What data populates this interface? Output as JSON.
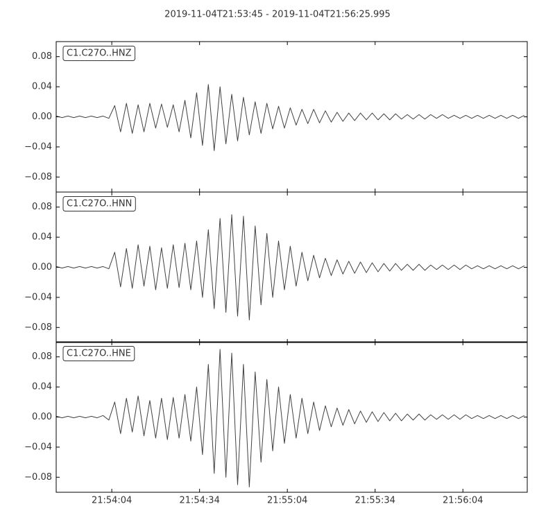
{
  "title": "2019-11-04T21:53:45  -  2019-11-04T21:56:25.995",
  "chart_data": [
    {
      "type": "line",
      "xlim": [
        0,
        160.995
      ],
      "ylim": [
        -0.1,
        0.1
      ],
      "xticks": [
        19,
        49,
        79,
        109,
        139
      ],
      "yticks": [
        0.08,
        0.04,
        {
          "value": 0,
          "label": "0.00"
        },
        {
          "value": -0.04,
          "label": "−0.04"
        },
        {
          "value": -0.08,
          "label": "−0.08"
        }
      ],
      "x": [
        0,
        2,
        4,
        6,
        8,
        10,
        12,
        14,
        16,
        18,
        20,
        22,
        24,
        26,
        28,
        30,
        32,
        34,
        36,
        38,
        40,
        42,
        44,
        46,
        48,
        50,
        52,
        54,
        56,
        58,
        60,
        62,
        64,
        66,
        68,
        70,
        72,
        74,
        76,
        78,
        80,
        82,
        84,
        86,
        88,
        90,
        92,
        94,
        96,
        98,
        100,
        102,
        104,
        106,
        108,
        110,
        112,
        114,
        116,
        118,
        120,
        122,
        124,
        126,
        128,
        130,
        132,
        134,
        136,
        138,
        140,
        142,
        144,
        146,
        148,
        150,
        152,
        154,
        156,
        158,
        160
      ],
      "series": [
        {
          "name": "C1.C27O..HNZ",
          "color": "#404040",
          "values": [
            0.001,
            -0.001,
            0.001,
            -0.001,
            0.001,
            -0.001,
            0.001,
            -0.001,
            0.001,
            -0.002,
            0.015,
            -0.02,
            0.018,
            -0.022,
            0.016,
            -0.02,
            0.018,
            -0.015,
            0.017,
            -0.014,
            0.016,
            -0.02,
            0.022,
            -0.028,
            0.032,
            -0.038,
            0.043,
            -0.045,
            0.04,
            -0.036,
            0.03,
            -0.032,
            0.026,
            -0.024,
            0.02,
            -0.022,
            0.018,
            -0.016,
            0.014,
            -0.015,
            0.012,
            -0.011,
            0.01,
            -0.009,
            0.01,
            -0.008,
            0.008,
            -0.007,
            0.006,
            -0.006,
            0.005,
            -0.005,
            0.005,
            -0.004,
            0.005,
            -0.004,
            0.004,
            -0.004,
            0.004,
            -0.003,
            0.003,
            -0.003,
            0.003,
            -0.003,
            0.003,
            -0.002,
            0.003,
            -0.002,
            0.002,
            -0.002,
            0.002,
            -0.002,
            0.002,
            -0.002,
            0.002,
            -0.002,
            0.002,
            -0.002,
            0.002,
            -0.002,
            0.002
          ]
        }
      ]
    },
    {
      "type": "line",
      "xlim": [
        0,
        160.995
      ],
      "ylim": [
        -0.1,
        0.1
      ],
      "xticks": [
        19,
        49,
        79,
        109,
        139
      ],
      "yticks": [
        0.08,
        0.04,
        {
          "value": 0,
          "label": "0.00"
        },
        {
          "value": -0.04,
          "label": "−0.04"
        },
        {
          "value": -0.08,
          "label": "−0.08"
        }
      ],
      "x": [
        0,
        2,
        4,
        6,
        8,
        10,
        12,
        14,
        16,
        18,
        20,
        22,
        24,
        26,
        28,
        30,
        32,
        34,
        36,
        38,
        40,
        42,
        44,
        46,
        48,
        50,
        52,
        54,
        56,
        58,
        60,
        62,
        64,
        66,
        68,
        70,
        72,
        74,
        76,
        78,
        80,
        82,
        84,
        86,
        88,
        90,
        92,
        94,
        96,
        98,
        100,
        102,
        104,
        106,
        108,
        110,
        112,
        114,
        116,
        118,
        120,
        122,
        124,
        126,
        128,
        130,
        132,
        134,
        136,
        138,
        140,
        142,
        144,
        146,
        148,
        150,
        152,
        154,
        156,
        158,
        160
      ],
      "series": [
        {
          "name": "C1.C27O..HNN",
          "color": "#404040",
          "values": [
            0.001,
            -0.001,
            0.001,
            -0.001,
            0.001,
            -0.001,
            0.001,
            -0.001,
            0.001,
            -0.002,
            0.02,
            -0.026,
            0.025,
            -0.028,
            0.03,
            -0.025,
            0.028,
            -0.03,
            0.026,
            -0.028,
            0.03,
            -0.027,
            0.032,
            -0.03,
            0.035,
            -0.04,
            0.05,
            -0.055,
            0.065,
            -0.06,
            0.07,
            -0.065,
            0.068,
            -0.07,
            0.055,
            -0.05,
            0.045,
            -0.04,
            0.035,
            -0.03,
            0.028,
            -0.025,
            0.02,
            -0.018,
            0.016,
            -0.014,
            0.012,
            -0.011,
            0.01,
            -0.009,
            0.008,
            -0.008,
            0.007,
            -0.007,
            0.006,
            -0.006,
            0.005,
            -0.005,
            0.005,
            -0.004,
            0.004,
            -0.004,
            0.004,
            -0.004,
            0.003,
            -0.003,
            0.003,
            -0.003,
            0.003,
            -0.003,
            0.003,
            -0.002,
            0.002,
            -0.002,
            0.002,
            -0.002,
            0.002,
            -0.002,
            0.002,
            -0.002,
            0.002
          ]
        }
      ]
    },
    {
      "type": "line",
      "xlim": [
        0,
        160.995
      ],
      "ylim": [
        -0.1,
        0.1
      ],
      "xticks": [
        {
          "value": 19,
          "label": "21:54:04"
        },
        {
          "value": 49,
          "label": "21:54:34"
        },
        {
          "value": 79,
          "label": "21:55:04"
        },
        {
          "value": 109,
          "label": "21:55:34"
        },
        {
          "value": 139,
          "label": "21:56:04"
        }
      ],
      "yticks": [
        0.08,
        0.04,
        {
          "value": 0,
          "label": "0.00"
        },
        {
          "value": -0.04,
          "label": "−0.04"
        },
        {
          "value": -0.08,
          "label": "−0.08"
        }
      ],
      "x": [
        0,
        2,
        4,
        6,
        8,
        10,
        12,
        14,
        16,
        18,
        20,
        22,
        24,
        26,
        28,
        30,
        32,
        34,
        36,
        38,
        40,
        42,
        44,
        46,
        48,
        50,
        52,
        54,
        56,
        58,
        60,
        62,
        64,
        66,
        68,
        70,
        72,
        74,
        76,
        78,
        80,
        82,
        84,
        86,
        88,
        90,
        92,
        94,
        96,
        98,
        100,
        102,
        104,
        106,
        108,
        110,
        112,
        114,
        116,
        118,
        120,
        122,
        124,
        126,
        128,
        130,
        132,
        134,
        136,
        138,
        140,
        142,
        144,
        146,
        148,
        150,
        152,
        154,
        156,
        158,
        160
      ],
      "series": [
        {
          "name": "C1.C27O..HNE",
          "color": "#404040",
          "values": [
            0.001,
            -0.001,
            0.001,
            -0.001,
            0.001,
            -0.001,
            0.001,
            -0.001,
            0.002,
            -0.004,
            0.02,
            -0.022,
            0.025,
            -0.02,
            0.028,
            -0.025,
            0.022,
            -0.028,
            0.025,
            -0.03,
            0.026,
            -0.028,
            0.03,
            -0.032,
            0.04,
            -0.05,
            0.07,
            -0.075,
            0.09,
            -0.08,
            0.085,
            -0.09,
            0.07,
            -0.093,
            0.06,
            -0.06,
            0.05,
            -0.045,
            0.04,
            -0.035,
            0.03,
            -0.028,
            0.025,
            -0.022,
            0.02,
            -0.018,
            0.015,
            -0.013,
            0.012,
            -0.011,
            0.01,
            -0.009,
            0.008,
            -0.007,
            0.007,
            -0.006,
            0.006,
            -0.005,
            0.005,
            -0.005,
            0.004,
            -0.004,
            0.004,
            -0.004,
            0.003,
            -0.003,
            0.003,
            -0.003,
            0.003,
            -0.003,
            0.003,
            -0.002,
            0.002,
            -0.002,
            0.002,
            -0.002,
            0.002,
            -0.002,
            0.002,
            -0.002,
            0.002
          ]
        }
      ]
    }
  ]
}
